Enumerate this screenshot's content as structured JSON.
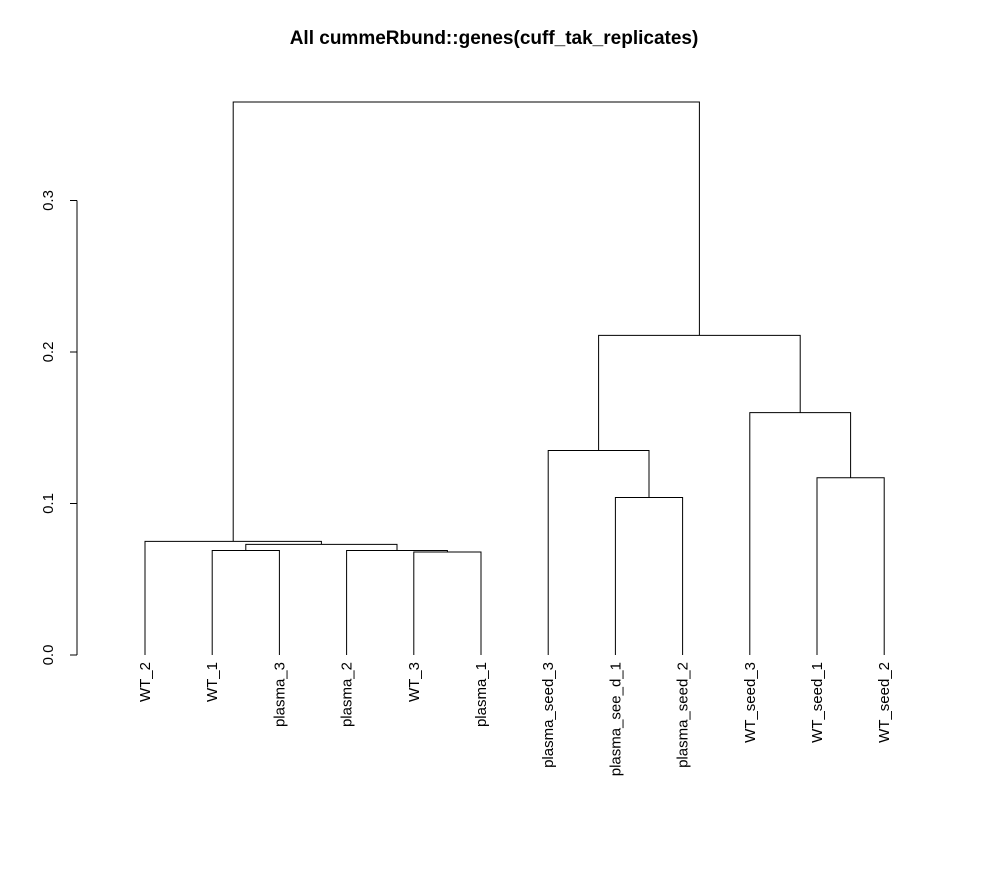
{
  "chart_data": {
    "type": "dendrogram",
    "title": "All cummeRbund::genes(cuff_tak_replicates)",
    "xlabel": "",
    "ylabel": "",
    "ylim": [
      0,
      0.3
    ],
    "yticks": [
      0.0,
      0.1,
      0.2,
      0.3
    ],
    "ytick_labels": [
      "0.0",
      "0.1",
      "0.2",
      "0.3"
    ],
    "leaves": [
      "WT_2",
      "WT_1",
      "plasma_3",
      "plasma_2",
      "WT_3",
      "plasma_1",
      "plasma_seed_3",
      "plasma_see_d_1",
      "plasma_seed_2",
      "WT_seed_3",
      "WT_seed_1",
      "WT_seed_2"
    ],
    "merges": [
      {
        "left": -5,
        "right": -6,
        "height": 0.068
      },
      {
        "left": -4,
        "right": 1,
        "height": 0.069
      },
      {
        "left": -2,
        "right": -3,
        "height": 0.069
      },
      {
        "left": 3,
        "right": 2,
        "height": 0.073
      },
      {
        "left": -1,
        "right": 4,
        "height": 0.075
      },
      {
        "left": -8,
        "right": -9,
        "height": 0.104
      },
      {
        "left": -11,
        "right": -12,
        "height": 0.117
      },
      {
        "left": -7,
        "right": 6,
        "height": 0.135
      },
      {
        "left": -10,
        "right": 7,
        "height": 0.16
      },
      {
        "left": 8,
        "right": 9,
        "height": 0.211
      },
      {
        "left": 5,
        "right": 10,
        "height": 0.365
      }
    ],
    "grid": false,
    "legend": "none"
  }
}
